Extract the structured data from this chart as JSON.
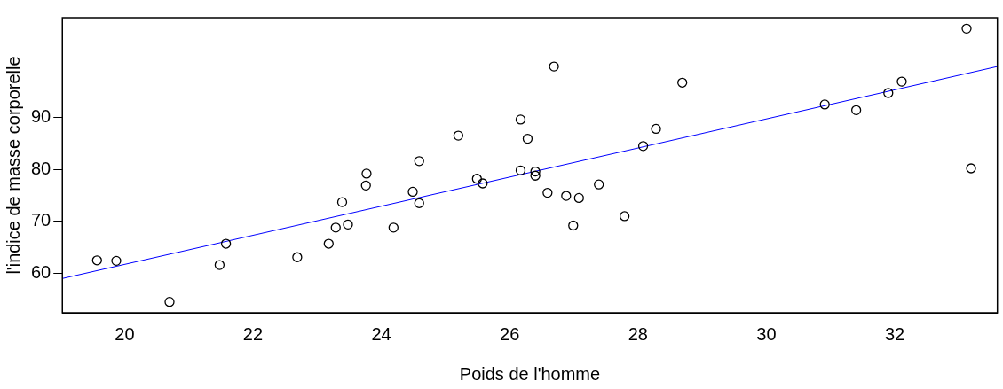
{
  "chart_data": {
    "type": "scatter",
    "xlabel": "Poids de l'homme",
    "ylabel": "l'indice de masse corporelle",
    "xlim": [
      19.03,
      33.6
    ],
    "ylim": [
      52.4,
      109.2
    ],
    "xticks": [
      20,
      22,
      24,
      26,
      28,
      30,
      32
    ],
    "yticks": [
      60,
      70,
      80,
      90
    ],
    "grid": false,
    "legend": false,
    "series": [
      {
        "type": "scatter",
        "marker": "circle",
        "color": "#000000",
        "x": [
          19.57,
          19.87,
          20.7,
          21.48,
          21.58,
          22.69,
          23.18,
          23.29,
          23.39,
          23.48,
          23.76,
          23.77,
          24.19,
          24.49,
          24.59,
          24.59,
          25.2,
          25.49,
          25.58,
          26.17,
          26.17,
          26.28,
          26.4,
          26.4,
          26.59,
          26.69,
          26.88,
          26.99,
          27.08,
          27.39,
          27.79,
          28.08,
          28.28,
          28.69,
          30.91,
          31.4,
          31.9,
          32.11,
          33.12,
          33.19
        ],
        "values": [
          62.5,
          62.4,
          54.5,
          61.6,
          65.7,
          63.1,
          65.7,
          68.8,
          73.7,
          69.4,
          76.9,
          79.2,
          68.8,
          75.7,
          73.5,
          81.6,
          86.5,
          78.2,
          77.3,
          89.6,
          79.8,
          85.9,
          79.6,
          78.8,
          75.5,
          99.8,
          74.9,
          69.2,
          74.5,
          77.1,
          71.0,
          84.5,
          87.8,
          96.7,
          92.5,
          91.4,
          94.7,
          96.9,
          107.1,
          80.2
        ]
      },
      {
        "type": "line",
        "marker": "none",
        "color": "#0000ff",
        "x": [
          19.03,
          33.6
        ],
        "values": [
          59.0,
          99.8
        ]
      }
    ]
  }
}
